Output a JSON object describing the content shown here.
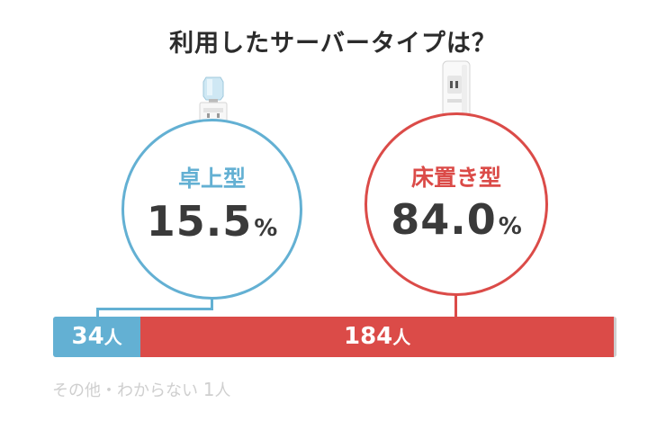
{
  "colors": {
    "tabletop": "#63b0d3",
    "floor": "#db4b48",
    "other": "#cfcfcf"
  },
  "chart_data": {
    "type": "bar",
    "title": "利用したサーバータイプは？",
    "categories": [
      "卓上型",
      "床置き型",
      "その他・わからない"
    ],
    "values": [
      34,
      184,
      1
    ],
    "unit": "人",
    "percentages": [
      {
        "label": "卓上型",
        "value": "15.5",
        "unit": "%"
      },
      {
        "label": "床置き型",
        "value": "84.0",
        "unit": "%"
      }
    ],
    "footnote": {
      "label": "その他・わからない",
      "value": "1",
      "unit": "人"
    }
  },
  "icons": [
    "tabletop-water-server-icon",
    "floor-water-server-icon"
  ]
}
